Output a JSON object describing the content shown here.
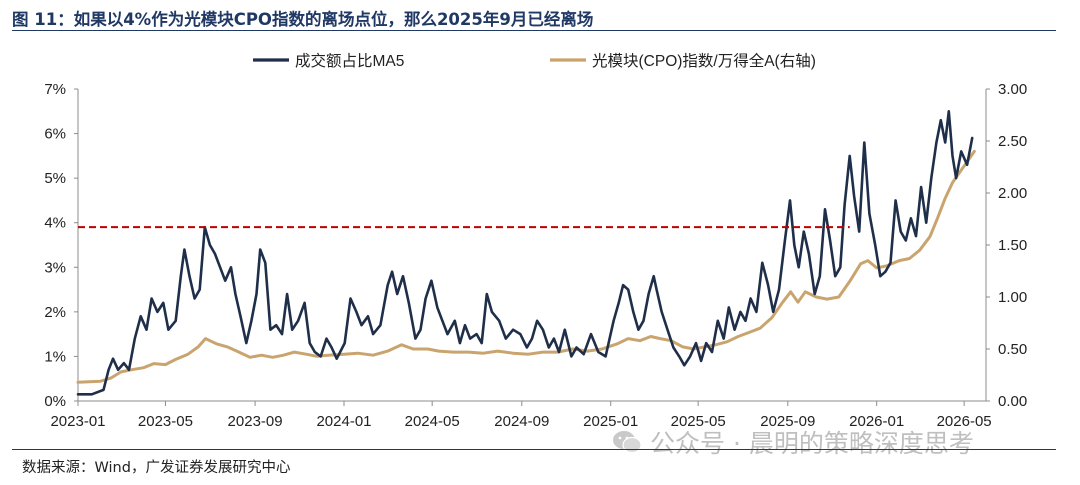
{
  "header": {
    "title": "图 11：如果以4%作为光模块CPO指数的离场点位，那么2025年9月已经离场"
  },
  "footer": {
    "source": "数据来源：Wind，广发证券发展研究中心"
  },
  "watermark": {
    "text": "公众号 · 晨明的策略深度思考",
    "icon": "wechat-icon"
  },
  "chart_data": {
    "type": "line",
    "title": "如果以4%作为光模块CPO指数的离场点位，那么2025年9月已经离场",
    "legend": {
      "placement": "top-center"
    },
    "grid": false,
    "x_axis": {
      "type": "date",
      "range": [
        "2023-01-01",
        "2026-05-31"
      ],
      "ticks": [
        "2023-01",
        "2023-05",
        "2023-09",
        "2024-01",
        "2024-05",
        "2024-09",
        "2025-01",
        "2025-05",
        "2025-09",
        "2026-01",
        "2026-05"
      ]
    },
    "y_left": {
      "range": [
        0,
        7
      ],
      "ticks": [
        "0%",
        "1%",
        "2%",
        "3%",
        "4%",
        "5%",
        "6%",
        "7%"
      ]
    },
    "y_right": {
      "range": [
        0,
        3
      ],
      "ticks": [
        "0.00",
        "0.50",
        "1.00",
        "1.50",
        "2.00",
        "2.50",
        "3.00"
      ]
    },
    "threshold": {
      "value": 3.9,
      "axis": "left",
      "from": "2023-01-01",
      "to": "2025-11-25",
      "color": "#c00000",
      "style": "dashed"
    },
    "series": [
      {
        "name": "成交额占比MA5",
        "axis": "left",
        "unit": "%",
        "color": "#1f2f4a",
        "points": [
          [
            "2023-01-01",
            0.15
          ],
          [
            "2023-01-20",
            0.15
          ],
          [
            "2023-02-05",
            0.25
          ],
          [
            "2023-02-12",
            0.7
          ],
          [
            "2023-02-18",
            0.95
          ],
          [
            "2023-02-25",
            0.7
          ],
          [
            "2023-03-05",
            0.85
          ],
          [
            "2023-03-12",
            0.7
          ],
          [
            "2023-03-20",
            1.4
          ],
          [
            "2023-03-28",
            1.9
          ],
          [
            "2023-04-05",
            1.6
          ],
          [
            "2023-04-12",
            2.3
          ],
          [
            "2023-04-20",
            2.0
          ],
          [
            "2023-04-28",
            2.2
          ],
          [
            "2023-05-05",
            1.6
          ],
          [
            "2023-05-15",
            1.8
          ],
          [
            "2023-05-22",
            2.8
          ],
          [
            "2023-05-27",
            3.4
          ],
          [
            "2023-06-03",
            2.8
          ],
          [
            "2023-06-10",
            2.3
          ],
          [
            "2023-06-17",
            2.5
          ],
          [
            "2023-06-24",
            3.9
          ],
          [
            "2023-07-01",
            3.5
          ],
          [
            "2023-07-08",
            3.3
          ],
          [
            "2023-07-15",
            3.0
          ],
          [
            "2023-07-22",
            2.7
          ],
          [
            "2023-07-30",
            3.0
          ],
          [
            "2023-08-05",
            2.4
          ],
          [
            "2023-08-12",
            1.9
          ],
          [
            "2023-08-20",
            1.3
          ],
          [
            "2023-08-27",
            1.8
          ],
          [
            "2023-09-03",
            2.4
          ],
          [
            "2023-09-08",
            3.4
          ],
          [
            "2023-09-15",
            3.1
          ],
          [
            "2023-09-22",
            1.6
          ],
          [
            "2023-09-30",
            1.7
          ],
          [
            "2023-10-08",
            1.5
          ],
          [
            "2023-10-15",
            2.4
          ],
          [
            "2023-10-22",
            1.6
          ],
          [
            "2023-10-30",
            1.8
          ],
          [
            "2023-11-08",
            2.2
          ],
          [
            "2023-11-15",
            1.3
          ],
          [
            "2023-11-22",
            1.1
          ],
          [
            "2023-11-30",
            1.0
          ],
          [
            "2023-12-08",
            1.4
          ],
          [
            "2023-12-15",
            1.2
          ],
          [
            "2023-12-22",
            0.95
          ],
          [
            "2024-01-02",
            1.3
          ],
          [
            "2024-01-10",
            2.3
          ],
          [
            "2024-01-18",
            2.0
          ],
          [
            "2024-01-25",
            1.7
          ],
          [
            "2024-02-03",
            1.9
          ],
          [
            "2024-02-10",
            1.5
          ],
          [
            "2024-02-20",
            1.7
          ],
          [
            "2024-03-01",
            2.6
          ],
          [
            "2024-03-07",
            2.9
          ],
          [
            "2024-03-14",
            2.4
          ],
          [
            "2024-03-22",
            2.8
          ],
          [
            "2024-03-30",
            2.2
          ],
          [
            "2024-04-08",
            1.4
          ],
          [
            "2024-04-15",
            1.6
          ],
          [
            "2024-04-22",
            2.3
          ],
          [
            "2024-04-30",
            2.7
          ],
          [
            "2024-05-08",
            2.1
          ],
          [
            "2024-05-15",
            1.8
          ],
          [
            "2024-05-22",
            1.5
          ],
          [
            "2024-06-01",
            1.8
          ],
          [
            "2024-06-08",
            1.3
          ],
          [
            "2024-06-15",
            1.7
          ],
          [
            "2024-06-22",
            1.4
          ],
          [
            "2024-07-01",
            1.5
          ],
          [
            "2024-07-08",
            1.3
          ],
          [
            "2024-07-15",
            2.4
          ],
          [
            "2024-07-22",
            2.0
          ],
          [
            "2024-08-01",
            1.8
          ],
          [
            "2024-08-10",
            1.4
          ],
          [
            "2024-08-20",
            1.6
          ],
          [
            "2024-08-30",
            1.5
          ],
          [
            "2024-09-08",
            1.2
          ],
          [
            "2024-09-15",
            1.4
          ],
          [
            "2024-09-22",
            1.8
          ],
          [
            "2024-09-30",
            1.6
          ],
          [
            "2024-10-08",
            1.2
          ],
          [
            "2024-10-15",
            1.4
          ],
          [
            "2024-10-22",
            1.1
          ],
          [
            "2024-10-30",
            1.6
          ],
          [
            "2024-11-08",
            1.0
          ],
          [
            "2024-11-15",
            1.2
          ],
          [
            "2024-11-25",
            1.05
          ],
          [
            "2024-12-05",
            1.5
          ],
          [
            "2024-12-15",
            1.1
          ],
          [
            "2024-12-25",
            1.0
          ],
          [
            "2025-01-05",
            1.8
          ],
          [
            "2025-01-12",
            2.2
          ],
          [
            "2025-01-18",
            2.6
          ],
          [
            "2025-01-25",
            2.5
          ],
          [
            "2025-02-01",
            2.0
          ],
          [
            "2025-02-08",
            1.6
          ],
          [
            "2025-02-15",
            1.8
          ],
          [
            "2025-02-22",
            2.4
          ],
          [
            "2025-03-01",
            2.8
          ],
          [
            "2025-03-05",
            2.5
          ],
          [
            "2025-03-12",
            2.0
          ],
          [
            "2025-03-20",
            1.6
          ],
          [
            "2025-03-28",
            1.2
          ],
          [
            "2025-04-05",
            1.0
          ],
          [
            "2025-04-12",
            0.8
          ],
          [
            "2025-04-20",
            1.0
          ],
          [
            "2025-04-28",
            1.3
          ],
          [
            "2025-05-05",
            0.9
          ],
          [
            "2025-05-12",
            1.3
          ],
          [
            "2025-05-20",
            1.1
          ],
          [
            "2025-05-28",
            1.8
          ],
          [
            "2025-06-05",
            1.4
          ],
          [
            "2025-06-12",
            2.1
          ],
          [
            "2025-06-20",
            1.6
          ],
          [
            "2025-06-28",
            2.0
          ],
          [
            "2025-07-05",
            1.8
          ],
          [
            "2025-07-12",
            2.3
          ],
          [
            "2025-07-20",
            2.0
          ],
          [
            "2025-07-28",
            3.1
          ],
          [
            "2025-08-05",
            2.6
          ],
          [
            "2025-08-12",
            2.0
          ],
          [
            "2025-08-20",
            2.5
          ],
          [
            "2025-08-28",
            3.6
          ],
          [
            "2025-09-04",
            4.5
          ],
          [
            "2025-09-10",
            3.5
          ],
          [
            "2025-09-16",
            3.0
          ],
          [
            "2025-09-23",
            3.8
          ],
          [
            "2025-09-30",
            3.3
          ],
          [
            "2025-10-08",
            2.4
          ],
          [
            "2025-10-15",
            2.8
          ],
          [
            "2025-10-22",
            4.3
          ],
          [
            "2025-10-29",
            3.6
          ],
          [
            "2025-11-05",
            2.8
          ],
          [
            "2025-11-12",
            3.0
          ],
          [
            "2025-11-18",
            4.4
          ],
          [
            "2025-11-25",
            5.5
          ],
          [
            "2025-12-01",
            4.6
          ],
          [
            "2025-12-08",
            3.8
          ],
          [
            "2025-12-15",
            5.8
          ],
          [
            "2025-12-22",
            4.2
          ],
          [
            "2025-12-30",
            3.5
          ],
          [
            "2026-01-06",
            2.8
          ],
          [
            "2026-01-13",
            2.9
          ],
          [
            "2026-01-20",
            3.1
          ],
          [
            "2026-01-27",
            4.5
          ],
          [
            "2026-02-03",
            3.8
          ],
          [
            "2026-02-10",
            3.6
          ],
          [
            "2026-02-17",
            4.1
          ],
          [
            "2026-02-24",
            3.7
          ],
          [
            "2026-03-03",
            4.8
          ],
          [
            "2026-03-10",
            4.0
          ],
          [
            "2026-03-17",
            5.0
          ],
          [
            "2026-03-24",
            5.8
          ],
          [
            "2026-03-30",
            6.3
          ],
          [
            "2026-04-05",
            5.8
          ],
          [
            "2026-04-10",
            6.5
          ],
          [
            "2026-04-15",
            5.5
          ],
          [
            "2026-04-20",
            5.0
          ],
          [
            "2026-04-27",
            5.6
          ],
          [
            "2026-05-05",
            5.3
          ],
          [
            "2026-05-12",
            5.9
          ]
        ]
      },
      {
        "name": "光模块(CPO)指数/万得全A(右轴)",
        "axis": "right",
        "unit": "",
        "color": "#c9a46e",
        "points": [
          [
            "2023-01-01",
            0.18
          ],
          [
            "2023-02-01",
            0.19
          ],
          [
            "2023-02-15",
            0.22
          ],
          [
            "2023-03-01",
            0.28
          ],
          [
            "2023-03-15",
            0.3
          ],
          [
            "2023-04-01",
            0.32
          ],
          [
            "2023-04-15",
            0.36
          ],
          [
            "2023-05-01",
            0.35
          ],
          [
            "2023-05-15",
            0.4
          ],
          [
            "2023-06-01",
            0.45
          ],
          [
            "2023-06-15",
            0.52
          ],
          [
            "2023-06-25",
            0.6
          ],
          [
            "2023-07-10",
            0.55
          ],
          [
            "2023-07-25",
            0.52
          ],
          [
            "2023-08-10",
            0.47
          ],
          [
            "2023-08-25",
            0.42
          ],
          [
            "2023-09-10",
            0.44
          ],
          [
            "2023-09-25",
            0.42
          ],
          [
            "2023-10-10",
            0.44
          ],
          [
            "2023-10-25",
            0.47
          ],
          [
            "2023-11-10",
            0.45
          ],
          [
            "2023-11-25",
            0.43
          ],
          [
            "2023-12-10",
            0.44
          ],
          [
            "2024-01-01",
            0.45
          ],
          [
            "2024-01-20",
            0.46
          ],
          [
            "2024-02-10",
            0.44
          ],
          [
            "2024-03-01",
            0.48
          ],
          [
            "2024-03-20",
            0.54
          ],
          [
            "2024-04-05",
            0.5
          ],
          [
            "2024-04-25",
            0.5
          ],
          [
            "2024-05-10",
            0.48
          ],
          [
            "2024-05-30",
            0.47
          ],
          [
            "2024-06-20",
            0.47
          ],
          [
            "2024-07-10",
            0.46
          ],
          [
            "2024-07-30",
            0.48
          ],
          [
            "2024-08-20",
            0.46
          ],
          [
            "2024-09-10",
            0.45
          ],
          [
            "2024-09-30",
            0.47
          ],
          [
            "2024-10-20",
            0.47
          ],
          [
            "2024-11-10",
            0.5
          ],
          [
            "2024-11-30",
            0.48
          ],
          [
            "2024-12-20",
            0.5
          ],
          [
            "2025-01-10",
            0.55
          ],
          [
            "2025-01-25",
            0.6
          ],
          [
            "2025-02-10",
            0.58
          ],
          [
            "2025-02-25",
            0.62
          ],
          [
            "2025-03-10",
            0.6
          ],
          [
            "2025-03-25",
            0.58
          ],
          [
            "2025-04-10",
            0.52
          ],
          [
            "2025-04-25",
            0.5
          ],
          [
            "2025-05-10",
            0.52
          ],
          [
            "2025-05-25",
            0.54
          ],
          [
            "2025-06-10",
            0.57
          ],
          [
            "2025-06-25",
            0.62
          ],
          [
            "2025-07-10",
            0.66
          ],
          [
            "2025-07-25",
            0.7
          ],
          [
            "2025-08-10",
            0.8
          ],
          [
            "2025-08-25",
            0.95
          ],
          [
            "2025-09-05",
            1.05
          ],
          [
            "2025-09-15",
            0.95
          ],
          [
            "2025-09-25",
            1.05
          ],
          [
            "2025-10-10",
            1.0
          ],
          [
            "2025-10-25",
            0.98
          ],
          [
            "2025-11-10",
            1.0
          ],
          [
            "2025-11-25",
            1.15
          ],
          [
            "2025-12-10",
            1.32
          ],
          [
            "2025-12-20",
            1.35
          ],
          [
            "2026-01-01",
            1.28
          ],
          [
            "2026-01-15",
            1.3
          ],
          [
            "2026-02-01",
            1.35
          ],
          [
            "2026-02-15",
            1.37
          ],
          [
            "2026-03-01",
            1.45
          ],
          [
            "2026-03-15",
            1.58
          ],
          [
            "2026-03-25",
            1.75
          ],
          [
            "2026-04-05",
            1.95
          ],
          [
            "2026-04-15",
            2.1
          ],
          [
            "2026-04-25",
            2.2
          ],
          [
            "2026-05-05",
            2.3
          ],
          [
            "2026-05-15",
            2.4
          ]
        ]
      }
    ]
  }
}
